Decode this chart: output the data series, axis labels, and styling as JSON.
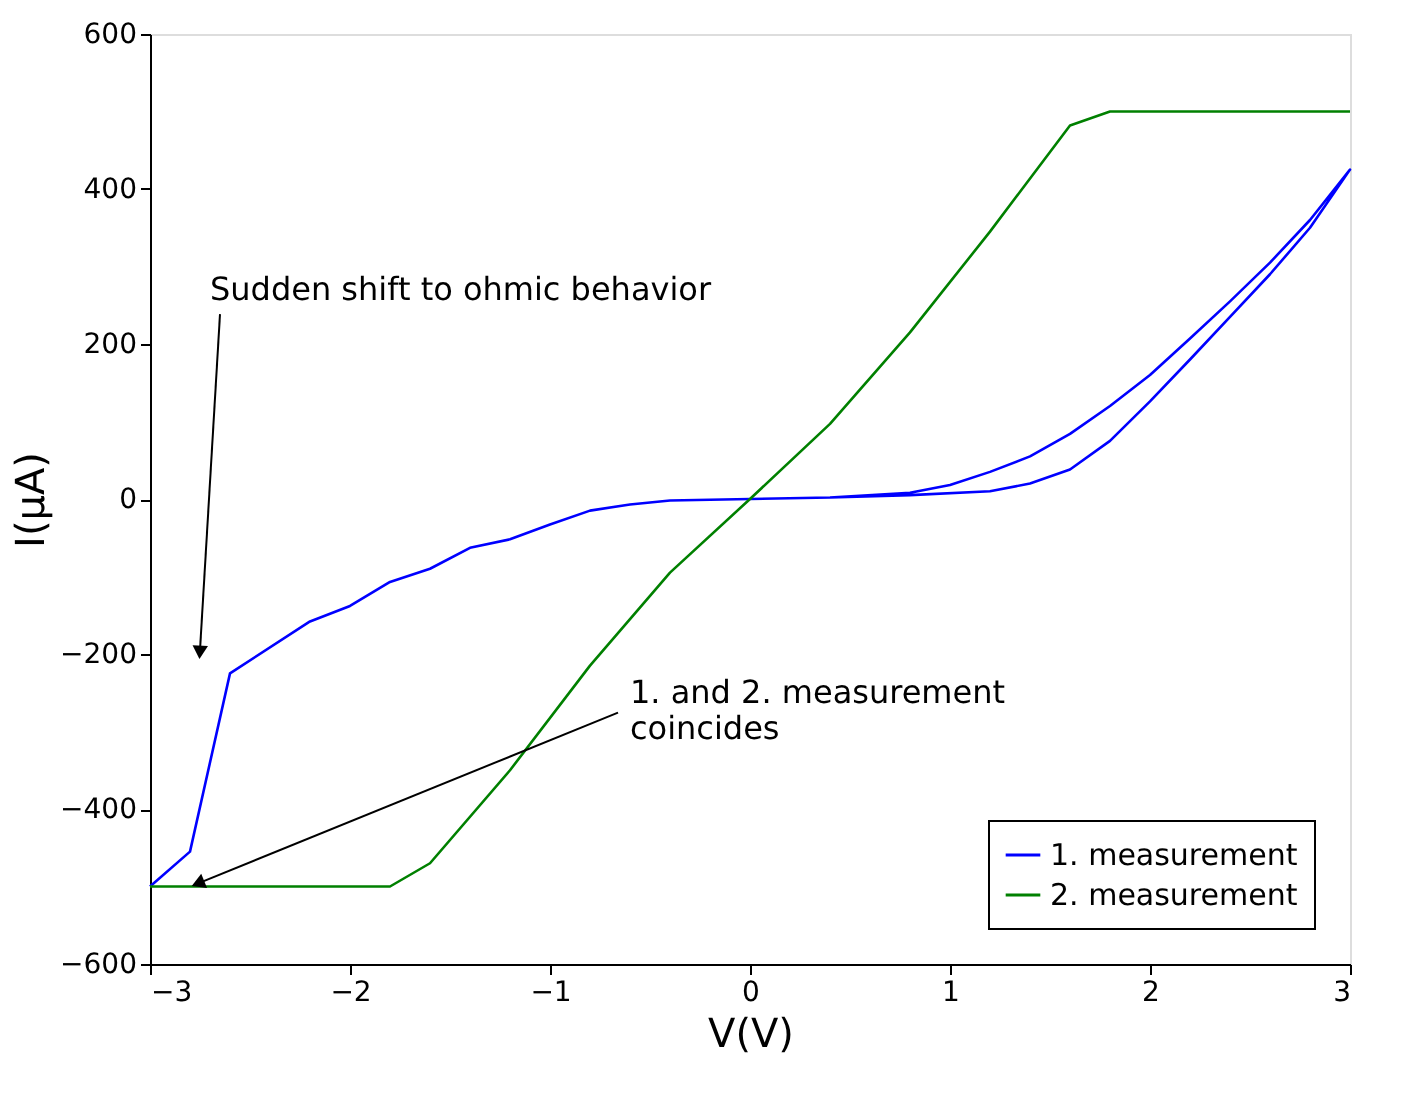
{
  "chart_data": {
    "type": "line",
    "xlabel": "V(V)",
    "ylabel": "I(μA)",
    "xlim": [
      -3,
      3
    ],
    "ylim": [
      -600,
      600
    ],
    "xticks": [
      -3,
      -2,
      -1,
      0,
      1,
      2,
      3
    ],
    "yticks": [
      -600,
      -400,
      -200,
      0,
      200,
      400,
      600
    ],
    "grid": false,
    "legend": "bottom right",
    "line_style": "solid",
    "marker": "none",
    "series": [
      {
        "name": "1. measurement",
        "color": "#0000ff",
        "x": [
          0,
          0.4,
          0.8,
          1.0,
          1.2,
          1.4,
          1.6,
          1.8,
          2.0,
          2.2,
          2.4,
          2.6,
          2.8,
          3.0,
          2.8,
          2.6,
          2.4,
          2.2,
          2.0,
          1.8,
          1.6,
          1.4,
          1.2,
          0.8,
          0.4,
          0,
          -0.4,
          -0.6,
          -0.8,
          -1.0,
          -1.2,
          -1.4,
          -1.6,
          -1.8,
          -2.0,
          -2.2,
          -2.6,
          -2.8,
          -3.0
        ],
        "values": [
          0,
          2,
          8,
          18,
          35,
          55,
          84,
          120,
          160,
          207,
          255,
          305,
          360,
          425,
          350,
          290,
          235,
          180,
          126,
          75,
          38,
          20,
          10,
          5,
          2,
          0,
          -2,
          -7,
          -15,
          -33,
          -52,
          -63,
          -90,
          -107,
          -138,
          -158,
          -225,
          -455,
          -500
        ]
      },
      {
        "name": "2. measurement",
        "color": "#008000",
        "x": [
          -3.0,
          -1.8,
          -1.6,
          -1.2,
          -0.8,
          -0.4,
          0,
          0.4,
          0.8,
          1.2,
          1.6,
          1.8,
          3.0
        ],
        "values": [
          -500,
          -500,
          -470,
          -350,
          -215,
          -95,
          0,
          97,
          215,
          345,
          482,
          500,
          500
        ]
      }
    ],
    "annotations": [
      {
        "text": "Sudden shift to ohmic behavior",
        "x": -2.75,
        "y": -195
      },
      {
        "text": "1. and 2. measurement\ncoincides",
        "x": -2.75,
        "y": -495
      }
    ]
  }
}
